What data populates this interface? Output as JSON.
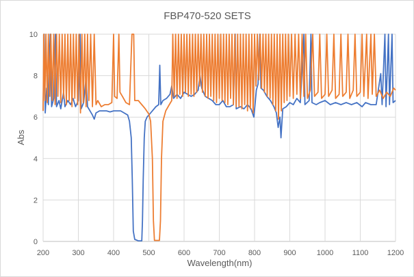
{
  "chart_data": {
    "type": "line",
    "title": "FBP470-520 SETS",
    "xlabel": "Wavelength(nm)",
    "ylabel": "Abs",
    "xlim": [
      200,
      1200
    ],
    "ylim": [
      0,
      10
    ],
    "xticks": [
      200,
      300,
      400,
      500,
      600,
      700,
      800,
      900,
      1000,
      1100,
      1200
    ],
    "yticks": [
      0,
      2,
      4,
      6,
      8,
      10
    ],
    "grid": true,
    "legend": "none",
    "series": [
      {
        "color": "#4472c4",
        "points": [
          [
            200,
            6.3
          ],
          [
            203,
            10
          ],
          [
            206,
            6.2
          ],
          [
            210,
            7.4
          ],
          [
            215,
            6.6
          ],
          [
            220,
            10
          ],
          [
            224,
            6.5
          ],
          [
            230,
            6.9
          ],
          [
            235,
            10
          ],
          [
            238,
            6.5
          ],
          [
            245,
            6.8
          ],
          [
            250,
            6.4
          ],
          [
            258,
            7.2
          ],
          [
            262,
            6.5
          ],
          [
            270,
            6.8
          ],
          [
            278,
            6.6
          ],
          [
            285,
            6.9
          ],
          [
            292,
            6.5
          ],
          [
            300,
            6.8
          ],
          [
            305,
            10
          ],
          [
            308,
            6.4
          ],
          [
            315,
            6.7
          ],
          [
            322,
            7.9
          ],
          [
            326,
            6.5
          ],
          [
            333,
            6.3
          ],
          [
            340,
            6.1
          ],
          [
            345,
            5.9
          ],
          [
            350,
            6.2
          ],
          [
            360,
            6.3
          ],
          [
            370,
            6.3
          ],
          [
            380,
            6.3
          ],
          [
            390,
            6.25
          ],
          [
            400,
            6.3
          ],
          [
            410,
            6.3
          ],
          [
            420,
            6.3
          ],
          [
            430,
            6.2
          ],
          [
            440,
            6.1
          ],
          [
            445,
            5.8
          ],
          [
            450,
            5.0
          ],
          [
            453,
            3
          ],
          [
            456,
            0.5
          ],
          [
            460,
            0.1
          ],
          [
            470,
            0.03
          ],
          [
            480,
            0.03
          ],
          [
            482,
            1
          ],
          [
            484,
            3
          ],
          [
            487,
            5
          ],
          [
            490,
            5.8
          ],
          [
            495,
            6.0
          ],
          [
            500,
            6.1
          ],
          [
            510,
            6.3
          ],
          [
            520,
            6.5
          ],
          [
            528,
            6.6
          ],
          [
            531,
            8.5
          ],
          [
            534,
            6.6
          ],
          [
            540,
            6.8
          ],
          [
            550,
            6.9
          ],
          [
            560,
            7.1
          ],
          [
            565,
            7.5
          ],
          [
            570,
            6.9
          ],
          [
            580,
            7.1
          ],
          [
            590,
            6.9
          ],
          [
            600,
            7.2
          ],
          [
            610,
            7.1
          ],
          [
            620,
            7.0
          ],
          [
            630,
            7.1
          ],
          [
            640,
            7.3
          ],
          [
            645,
            8.0
          ],
          [
            650,
            7.4
          ],
          [
            660,
            7.0
          ],
          [
            670,
            6.9
          ],
          [
            680,
            6.8
          ],
          [
            690,
            6.6
          ],
          [
            700,
            6.6
          ],
          [
            710,
            6.8
          ],
          [
            720,
            6.5
          ],
          [
            730,
            6.5
          ],
          [
            740,
            6.6
          ],
          [
            745,
            10
          ],
          [
            748,
            6.4
          ],
          [
            760,
            6.5
          ],
          [
            770,
            6.4
          ],
          [
            780,
            6.6
          ],
          [
            790,
            6.4
          ],
          [
            798,
            6.0
          ],
          [
            805,
            7.3
          ],
          [
            810,
            7.6
          ],
          [
            815,
            10
          ],
          [
            818,
            7.4
          ],
          [
            825,
            7.3
          ],
          [
            835,
            7.0
          ],
          [
            845,
            6.8
          ],
          [
            855,
            6.5
          ],
          [
            862,
            6.2
          ],
          [
            867,
            5.5
          ],
          [
            872,
            6.0
          ],
          [
            875,
            5.0
          ],
          [
            880,
            6.4
          ],
          [
            890,
            6.5
          ],
          [
            900,
            6.7
          ],
          [
            910,
            6.6
          ],
          [
            920,
            6.9
          ],
          [
            930,
            6.7
          ],
          [
            940,
            10
          ],
          [
            943,
            6.6
          ],
          [
            955,
            6.8
          ],
          [
            960,
            10
          ],
          [
            963,
            6.7
          ],
          [
            975,
            6.6
          ],
          [
            985,
            6.7
          ],
          [
            1000,
            6.8
          ],
          [
            1015,
            6.6
          ],
          [
            1030,
            6.7
          ],
          [
            1045,
            6.6
          ],
          [
            1060,
            6.7
          ],
          [
            1075,
            6.6
          ],
          [
            1090,
            6.7
          ],
          [
            1105,
            6.5
          ],
          [
            1115,
            6.7
          ],
          [
            1130,
            6.6
          ],
          [
            1145,
            6.6
          ],
          [
            1158,
            8.1
          ],
          [
            1162,
            6.6
          ],
          [
            1170,
            10
          ],
          [
            1173,
            6.5
          ],
          [
            1180,
            10
          ],
          [
            1183,
            6.6
          ],
          [
            1190,
            10
          ],
          [
            1193,
            6.7
          ],
          [
            1200,
            6.8
          ]
        ]
      },
      {
        "color": "#ed7d31",
        "points": [
          [
            200,
            6.3
          ],
          [
            202,
            10
          ],
          [
            205,
            6.8
          ],
          [
            208,
            10
          ],
          [
            212,
            6.7
          ],
          [
            215,
            10
          ],
          [
            219,
            7.0
          ],
          [
            222,
            10
          ],
          [
            226,
            6.8
          ],
          [
            230,
            10
          ],
          [
            234,
            6.6
          ],
          [
            238,
            10
          ],
          [
            242,
            7.0
          ],
          [
            246,
            10
          ],
          [
            250,
            6.7
          ],
          [
            254,
            10
          ],
          [
            258,
            6.9
          ],
          [
            262,
            10
          ],
          [
            266,
            6.6
          ],
          [
            270,
            10
          ],
          [
            274,
            6.8
          ],
          [
            278,
            10
          ],
          [
            282,
            6.5
          ],
          [
            286,
            10
          ],
          [
            290,
            6.9
          ],
          [
            294,
            10
          ],
          [
            298,
            6.6
          ],
          [
            302,
            10
          ],
          [
            306,
            6.2
          ],
          [
            310,
            10
          ],
          [
            314,
            6.7
          ],
          [
            318,
            10
          ],
          [
            322,
            6.5
          ],
          [
            326,
            10
          ],
          [
            330,
            6.8
          ],
          [
            335,
            10
          ],
          [
            340,
            6.5
          ],
          [
            345,
            10
          ],
          [
            350,
            6.6
          ],
          [
            355,
            6.8
          ],
          [
            365,
            6.5
          ],
          [
            375,
            6.6
          ],
          [
            385,
            6.6
          ],
          [
            395,
            6.7
          ],
          [
            400,
            10
          ],
          [
            403,
            7.0
          ],
          [
            410,
            6.9
          ],
          [
            415,
            10
          ],
          [
            418,
            7.2
          ],
          [
            425,
            7.0
          ],
          [
            435,
            6.7
          ],
          [
            445,
            6.6
          ],
          [
            452,
            10
          ],
          [
            457,
            10
          ],
          [
            460,
            6.8
          ],
          [
            470,
            6.8
          ],
          [
            480,
            6.6
          ],
          [
            490,
            6.4
          ],
          [
            500,
            6.15
          ],
          [
            505,
            5.8
          ],
          [
            510,
            4
          ],
          [
            513,
            1
          ],
          [
            516,
            0.05
          ],
          [
            530,
            0.05
          ],
          [
            533,
            1
          ],
          [
            536,
            4
          ],
          [
            540,
            5.8
          ],
          [
            548,
            6.3
          ],
          [
            558,
            6.6
          ],
          [
            565,
            6.8
          ],
          [
            568,
            10
          ],
          [
            572,
            7.0
          ],
          [
            576,
            10
          ],
          [
            580,
            6.9
          ],
          [
            584,
            10
          ],
          [
            588,
            7.1
          ],
          [
            592,
            10
          ],
          [
            596,
            7.0
          ],
          [
            600,
            10
          ],
          [
            604,
            7.2
          ],
          [
            608,
            10
          ],
          [
            612,
            7.0
          ],
          [
            616,
            10
          ],
          [
            620,
            7.1
          ],
          [
            624,
            10
          ],
          [
            628,
            7.0
          ],
          [
            632,
            10
          ],
          [
            636,
            7.2
          ],
          [
            640,
            10
          ],
          [
            644,
            7.5
          ],
          [
            648,
            10
          ],
          [
            652,
            7.2
          ],
          [
            656,
            10
          ],
          [
            660,
            7.0
          ],
          [
            664,
            10
          ],
          [
            668,
            6.9
          ],
          [
            672,
            10
          ],
          [
            676,
            7.0
          ],
          [
            680,
            10
          ],
          [
            684,
            6.8
          ],
          [
            688,
            10
          ],
          [
            692,
            6.7
          ],
          [
            696,
            10
          ],
          [
            700,
            6.9
          ],
          [
            704,
            10
          ],
          [
            708,
            6.8
          ],
          [
            712,
            10
          ],
          [
            716,
            6.7
          ],
          [
            720,
            10
          ],
          [
            724,
            6.6
          ],
          [
            728,
            10
          ],
          [
            732,
            6.9
          ],
          [
            736,
            10
          ],
          [
            740,
            6.6
          ],
          [
            744,
            10
          ],
          [
            748,
            6.5
          ],
          [
            752,
            10
          ],
          [
            756,
            6.5
          ],
          [
            760,
            10
          ],
          [
            764,
            6.4
          ],
          [
            768,
            10
          ],
          [
            772,
            6.6
          ],
          [
            776,
            10
          ],
          [
            780,
            6.3
          ],
          [
            784,
            10
          ],
          [
            788,
            6.4
          ],
          [
            792,
            10
          ],
          [
            796,
            6.2
          ],
          [
            800,
            10
          ],
          [
            804,
            7.5
          ],
          [
            808,
            10
          ],
          [
            812,
            7.8
          ],
          [
            816,
            10
          ],
          [
            820,
            7.4
          ],
          [
            824,
            10
          ],
          [
            828,
            7.2
          ],
          [
            832,
            10
          ],
          [
            836,
            7.0
          ],
          [
            840,
            10
          ],
          [
            844,
            6.9
          ],
          [
            848,
            10
          ],
          [
            852,
            6.6
          ],
          [
            856,
            10
          ],
          [
            860,
            6.3
          ],
          [
            864,
            10
          ],
          [
            868,
            5.9
          ],
          [
            872,
            10
          ],
          [
            876,
            6.3
          ],
          [
            880,
            10
          ],
          [
            884,
            6.7
          ],
          [
            888,
            10
          ],
          [
            892,
            6.8
          ],
          [
            896,
            10
          ],
          [
            900,
            7.0
          ],
          [
            905,
            10
          ],
          [
            910,
            6.9
          ],
          [
            915,
            10
          ],
          [
            920,
            7.1
          ],
          [
            925,
            10
          ],
          [
            930,
            6.9
          ],
          [
            935,
            10
          ],
          [
            940,
            7.0
          ],
          [
            945,
            10
          ],
          [
            950,
            6.9
          ],
          [
            958,
            7.3
          ],
          [
            965,
            10
          ],
          [
            970,
            7.0
          ],
          [
            980,
            7.2
          ],
          [
            985,
            10
          ],
          [
            990,
            6.9
          ],
          [
            1000,
            7.1
          ],
          [
            1005,
            10
          ],
          [
            1010,
            7.0
          ],
          [
            1020,
            7.3
          ],
          [
            1025,
            10
          ],
          [
            1030,
            6.9
          ],
          [
            1040,
            7.1
          ],
          [
            1045,
            10
          ],
          [
            1050,
            7.0
          ],
          [
            1060,
            7.2
          ],
          [
            1065,
            10
          ],
          [
            1070,
            6.9
          ],
          [
            1080,
            7.3
          ],
          [
            1085,
            10
          ],
          [
            1090,
            7.0
          ],
          [
            1100,
            7.2
          ],
          [
            1105,
            10
          ],
          [
            1110,
            7.0
          ],
          [
            1118,
            10
          ],
          [
            1122,
            6.9
          ],
          [
            1130,
            10
          ],
          [
            1134,
            7.1
          ],
          [
            1140,
            10
          ],
          [
            1145,
            7.0
          ],
          [
            1155,
            7.3
          ],
          [
            1165,
            6.9
          ],
          [
            1175,
            7.2
          ],
          [
            1185,
            7.0
          ],
          [
            1195,
            7.4
          ],
          [
            1200,
            7.3
          ]
        ]
      }
    ]
  }
}
